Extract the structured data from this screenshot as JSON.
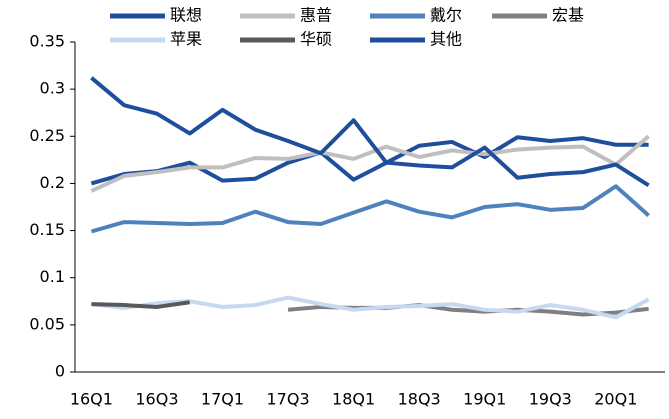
{
  "chart_data": {
    "type": "line",
    "categories": [
      "16Q1",
      null,
      "16Q3",
      null,
      "17Q1",
      null,
      "17Q3",
      null,
      "18Q1",
      null,
      "18Q3",
      null,
      "19Q1",
      null,
      "19Q3",
      null,
      "20Q1",
      null
    ],
    "series": [
      {
        "name": "联想",
        "color": "#1f4e9c",
        "values": [
          0.2,
          0.21,
          0.213,
          0.222,
          0.203,
          0.205,
          0.222,
          0.233,
          0.204,
          0.222,
          0.24,
          0.244,
          0.228,
          0.249,
          0.245,
          0.248,
          0.241,
          0.241
        ]
      },
      {
        "name": "惠普",
        "color": "#bfbfbf",
        "values": [
          0.192,
          0.208,
          0.212,
          0.217,
          0.217,
          0.227,
          0.226,
          0.233,
          0.226,
          0.239,
          0.228,
          0.235,
          0.231,
          0.236,
          0.238,
          0.239,
          0.22,
          0.25
        ]
      },
      {
        "name": "戴尔",
        "color": "#4f81bd",
        "values": [
          0.149,
          0.159,
          0.158,
          0.157,
          0.158,
          0.17,
          0.159,
          0.157,
          0.169,
          0.181,
          0.17,
          0.164,
          0.175,
          0.178,
          0.172,
          0.174,
          0.197,
          0.166
        ]
      },
      {
        "name": "宏基",
        "color": "#7f7f7f",
        "values": [
          null,
          null,
          null,
          null,
          null,
          null,
          0.066,
          0.069,
          0.068,
          0.068,
          0.071,
          0.066,
          0.064,
          0.066,
          0.064,
          0.061,
          0.063,
          0.067
        ]
      },
      {
        "name": "苹果",
        "color": "#c5d9f1",
        "values": [
          0.072,
          0.068,
          0.073,
          0.075,
          0.069,
          0.071,
          0.079,
          0.072,
          0.066,
          0.069,
          0.07,
          0.072,
          0.066,
          0.064,
          0.071,
          0.066,
          0.058,
          0.077
        ]
      },
      {
        "name": "华硕",
        "color": "#595959",
        "values": [
          0.072,
          0.071,
          0.069,
          0.074,
          null,
          null,
          null,
          null,
          null,
          null,
          null,
          null,
          null,
          null,
          null,
          null,
          null,
          null
        ]
      },
      {
        "name": "其他",
        "color": "#1f4e9c",
        "values": [
          0.312,
          0.283,
          0.274,
          0.253,
          0.278,
          0.257,
          0.245,
          0.232,
          0.267,
          0.222,
          0.219,
          0.217,
          0.238,
          0.206,
          0.21,
          0.212,
          0.22,
          0.198
        ]
      }
    ],
    "ylim": [
      0,
      0.35
    ],
    "yticks": [
      0,
      0.05,
      0.1,
      0.15,
      0.2,
      0.25,
      0.3,
      0.35
    ],
    "grid": false
  }
}
